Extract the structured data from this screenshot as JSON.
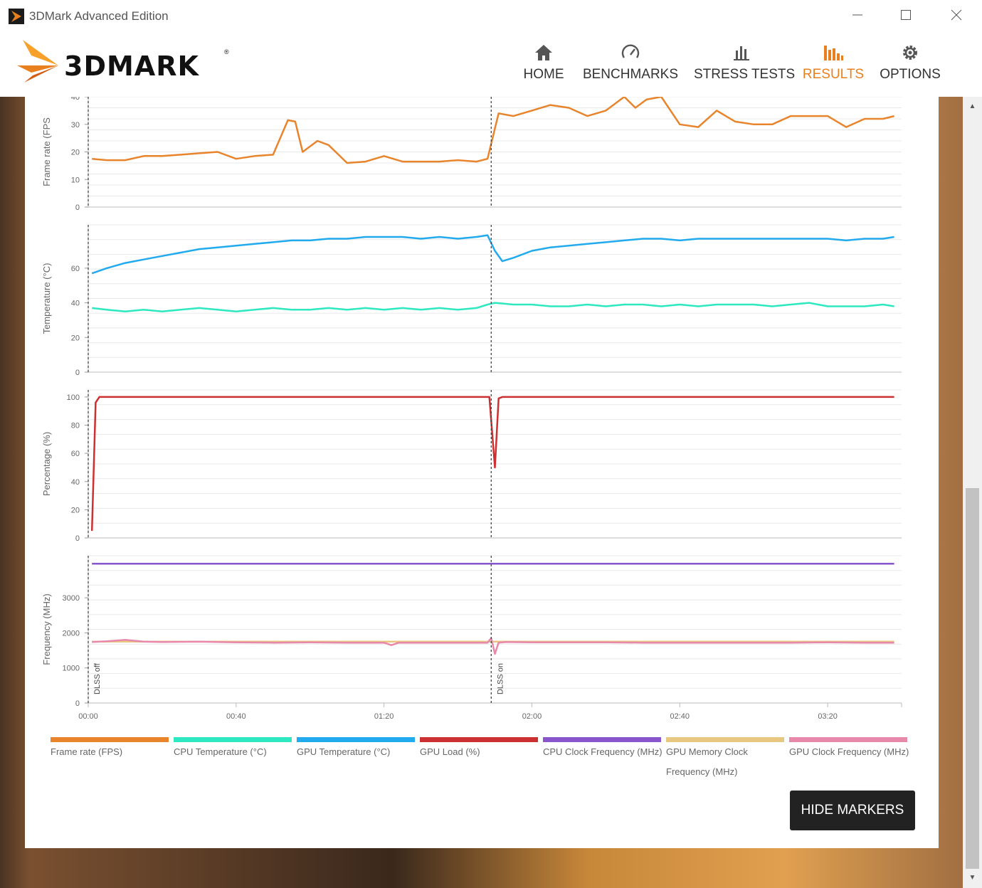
{
  "window": {
    "title": "3DMark Advanced Edition"
  },
  "logo": {
    "text": "3DMARK",
    "reg": "®"
  },
  "nav": [
    {
      "id": "home",
      "label": "HOME",
      "icon": "home-icon",
      "active": false
    },
    {
      "id": "benchmarks",
      "label": "BENCHMARKS",
      "icon": "gauge-icon",
      "active": false
    },
    {
      "id": "stress-tests",
      "label": "STRESS TESTS",
      "icon": "bars-icon",
      "active": false
    },
    {
      "id": "results",
      "label": "RESULTS",
      "icon": "bar-chart-icon",
      "active": true
    },
    {
      "id": "options",
      "label": "OPTIONS",
      "icon": "gear-icon",
      "active": false
    }
  ],
  "colors": {
    "accent": "#e8801f",
    "frame_rate": "#e8842c",
    "cpu_temp": "#2de8c0",
    "gpu_temp": "#22aaee",
    "gpu_load": "#cc3030",
    "cpu_clock": "#8855cc",
    "gpu_mem_clock": "#e8c880",
    "gpu_clock": "#e888aa"
  },
  "markers": [
    "DLSS off",
    "DLSS on"
  ],
  "hide_markers_label": "HIDE MARKERS",
  "chart_data": {
    "type": "line",
    "x_unit": "time (mm:ss)",
    "x_ticks": [
      "00:00",
      "00:40",
      "01:20",
      "02:00",
      "02:40",
      "03:20"
    ],
    "xlim_seconds": [
      0,
      220
    ],
    "marker_seconds": [
      0,
      109
    ],
    "panels": [
      {
        "ylabel": "Frame rate (FPS",
        "yticks": [
          "0",
          "10",
          "20",
          "30",
          "40"
        ],
        "ylim": [
          0,
          40
        ],
        "series": [
          {
            "name": "Frame rate (FPS)",
            "color_key": "frame_rate",
            "x": [
              1,
              5,
              10,
              15,
              20,
              25,
              30,
              35,
              40,
              45,
              50,
              54,
              56,
              58,
              60,
              62,
              65,
              70,
              75,
              80,
              85,
              90,
              95,
              100,
              105,
              108,
              111,
              115,
              120,
              125,
              130,
              135,
              140,
              143,
              145,
              148,
              151,
              155,
              160,
              165,
              170,
              175,
              180,
              185,
              190,
              195,
              200,
              205,
              210,
              215,
              218
            ],
            "y": [
              17.5,
              17,
              17,
              18.5,
              18.5,
              19,
              19.5,
              20,
              17.5,
              18.5,
              19,
              31.5,
              31,
              20,
              22,
              24,
              22.5,
              16,
              16.5,
              18.5,
              16.5,
              16.5,
              16.5,
              17,
              16.5,
              17.5,
              34,
              33,
              35,
              37,
              36,
              33,
              35,
              38,
              40,
              36,
              39,
              40,
              30,
              29,
              35,
              31,
              30,
              30,
              33,
              33,
              33,
              29,
              32,
              32,
              33
            ]
          }
        ]
      },
      {
        "ylabel": "Temperature (°C)",
        "yticks": [
          "0",
          "20",
          "40",
          "60"
        ],
        "ylim": [
          0,
          85
        ],
        "series": [
          {
            "name": "GPU Temperature (°C)",
            "color_key": "gpu_temp",
            "x": [
              1,
              5,
              10,
              15,
              20,
              25,
              30,
              35,
              40,
              45,
              50,
              55,
              60,
              65,
              70,
              75,
              80,
              85,
              90,
              95,
              100,
              105,
              108,
              110,
              112,
              115,
              120,
              125,
              130,
              135,
              140,
              145,
              150,
              155,
              160,
              165,
              170,
              175,
              180,
              185,
              190,
              195,
              200,
              205,
              210,
              215,
              218
            ],
            "y": [
              57,
              60,
              63,
              65,
              67,
              69,
              71,
              72,
              73,
              74,
              75,
              76,
              76,
              77,
              77,
              78,
              78,
              78,
              77,
              78,
              77,
              78,
              79,
              70,
              64,
              66,
              70,
              72,
              73,
              74,
              75,
              76,
              77,
              77,
              76,
              77,
              77,
              77,
              77,
              77,
              77,
              77,
              77,
              76,
              77,
              77,
              78
            ]
          },
          {
            "name": "CPU Temperature (°C)",
            "color_key": "cpu_temp",
            "x": [
              1,
              5,
              10,
              15,
              20,
              25,
              30,
              35,
              40,
              45,
              50,
              55,
              60,
              65,
              70,
              75,
              80,
              85,
              90,
              95,
              100,
              105,
              108,
              110,
              115,
              120,
              125,
              130,
              135,
              140,
              145,
              150,
              155,
              160,
              165,
              170,
              175,
              180,
              185,
              190,
              195,
              200,
              205,
              210,
              215,
              218
            ],
            "y": [
              37,
              36,
              35,
              36,
              35,
              36,
              37,
              36,
              35,
              36,
              37,
              36,
              36,
              37,
              36,
              37,
              36,
              37,
              36,
              37,
              36,
              37,
              39,
              40,
              39,
              39,
              38,
              38,
              39,
              38,
              39,
              39,
              38,
              39,
              38,
              39,
              39,
              39,
              38,
              39,
              40,
              38,
              38,
              38,
              39,
              38
            ]
          }
        ]
      },
      {
        "ylabel": "Percentage (%)",
        "yticks": [
          "0",
          "20",
          "40",
          "60",
          "80",
          "100"
        ],
        "ylim": [
          0,
          105
        ],
        "series": [
          {
            "name": "GPU Load (%)",
            "color_key": "gpu_load",
            "x": [
              1,
              2,
              3,
              60,
              108,
              108.5,
              110,
              111,
              112,
              115,
              160,
              218
            ],
            "y": [
              5,
              96,
              100,
              100,
              100,
              100,
              50,
              99,
              100,
              100,
              100,
              100
            ]
          }
        ]
      },
      {
        "ylabel": "Frequency (MHz)",
        "yticks": [
          "0",
          "1000",
          "2000",
          "3000"
        ],
        "ylim": [
          0,
          4200
        ],
        "series": [
          {
            "name": "CPU Clock Frequency (MHz)",
            "color_key": "cpu_clock",
            "x": [
              1,
              218
            ],
            "y": [
              3970,
              3970
            ]
          },
          {
            "name": "GPU Memory Clock Frequency (MHz)",
            "color_key": "gpu_mem_clock",
            "x": [
              1,
              218
            ],
            "y": [
              1750,
              1750
            ]
          },
          {
            "name": "GPU Clock Frequency (MHz)",
            "color_key": "gpu_clock",
            "x": [
              1,
              5,
              10,
              15,
              20,
              30,
              40,
              50,
              60,
              70,
              80,
              82,
              84,
              90,
              100,
              105,
              108,
              109,
              110,
              111,
              113,
              120,
              130,
              140,
              150,
              160,
              170,
              180,
              190,
              200,
              210,
              218
            ],
            "y": [
              1740,
              1760,
              1800,
              1750,
              1740,
              1750,
              1730,
              1720,
              1730,
              1720,
              1720,
              1650,
              1720,
              1720,
              1720,
              1720,
              1720,
              1850,
              1400,
              1720,
              1740,
              1730,
              1730,
              1730,
              1720,
              1720,
              1720,
              1720,
              1720,
              1730,
              1720,
              1720
            ]
          }
        ]
      }
    ],
    "legend": [
      {
        "label": "Frame rate (FPS)",
        "color_key": "frame_rate"
      },
      {
        "label": "CPU Temperature (°C)",
        "color_key": "cpu_temp"
      },
      {
        "label": "GPU Temperature (°C)",
        "color_key": "gpu_temp"
      },
      {
        "label": "GPU Load (%)",
        "color_key": "gpu_load"
      },
      {
        "label": "CPU Clock Frequency (MHz)",
        "color_key": "cpu_clock"
      },
      {
        "label": "GPU Memory Clock Frequency (MHz)",
        "color_key": "gpu_mem_clock",
        "lines": [
          "GPU Memory Clock",
          "Frequency (MHz)"
        ]
      },
      {
        "label": "GPU Clock Frequency (MHz)",
        "color_key": "gpu_clock"
      }
    ],
    "legend_placement": "bottom",
    "grid": true
  }
}
